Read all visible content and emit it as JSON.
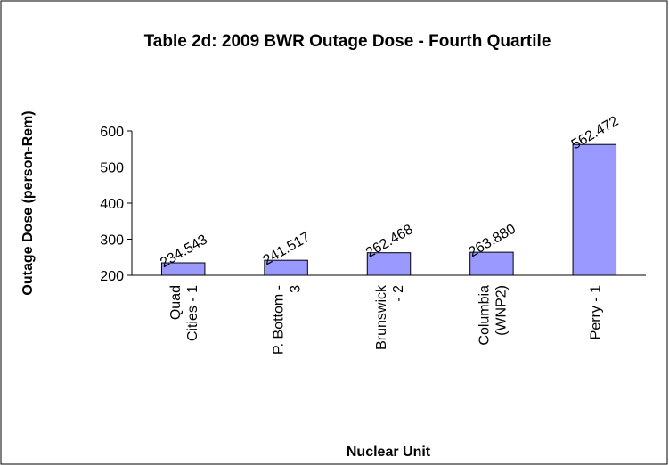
{
  "chart_data": {
    "type": "bar",
    "title": "Table 2d: 2009 BWR Outage Dose - Fourth Quartile",
    "ylabel": "Outage Dose (person-Rem)",
    "xlabel": "Nuclear Unit",
    "categories": [
      "Quad Cities - 1",
      "P. Bottom - 3",
      "Brunswick - 2",
      "Columbia (WNP2)",
      "Perry - 1"
    ],
    "values": [
      234.543,
      241.517,
      262.468,
      263.88,
      562.472
    ],
    "value_labels": [
      "234.543",
      "241.517",
      "262.468",
      "263.880",
      "562.472"
    ],
    "color": "#9999ff",
    "ylim": [
      200,
      600
    ],
    "yticks": [
      200,
      300,
      400,
      500,
      600
    ],
    "grid": false
  }
}
